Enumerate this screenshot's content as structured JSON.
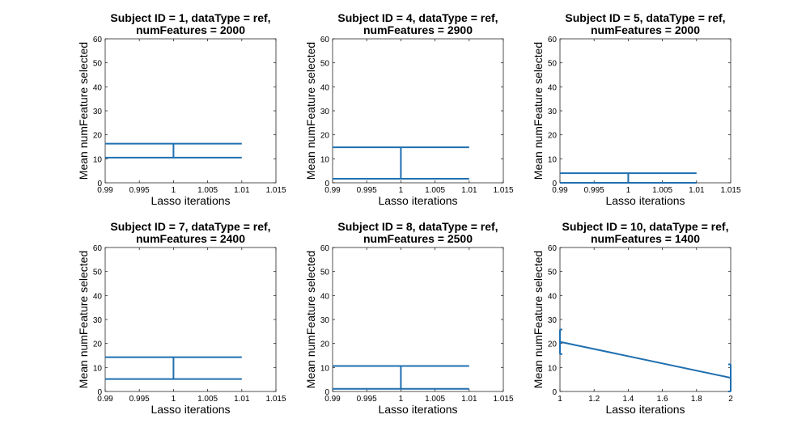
{
  "chart_data": [
    {
      "type": "line",
      "title": [
        "Subject ID = 1, dataType = ref,",
        "numFeatures = 2000"
      ],
      "xlabel": "Lasso iterations",
      "ylabel": "Mean numFeature selected",
      "xlim": [
        0.99,
        1.015
      ],
      "ylim": [
        0,
        60
      ],
      "xticks": [
        "0.99",
        "0.995",
        "1",
        "1.005",
        "1.01",
        "1.015"
      ],
      "yticks": [
        "0",
        "10",
        "20",
        "30",
        "40",
        "50",
        "60"
      ],
      "color": "#1f6fb0",
      "series": [
        {
          "x": [
            1
          ],
          "y": [
            13.5
          ],
          "lower": [
            10.5
          ],
          "upper": [
            16.3
          ]
        }
      ]
    },
    {
      "type": "line",
      "title": [
        "Subject ID = 4, dataType = ref,",
        "numFeatures = 2900"
      ],
      "xlabel": "Lasso iterations",
      "ylabel": "Mean numFeature selected",
      "xlim": [
        0.99,
        1.015
      ],
      "ylim": [
        0,
        60
      ],
      "xticks": [
        "0.99",
        "0.995",
        "1",
        "1.005",
        "1.01",
        "1.015"
      ],
      "yticks": [
        "0",
        "10",
        "20",
        "30",
        "40",
        "50",
        "60"
      ],
      "color": "#1f6fb0",
      "series": [
        {
          "x": [
            1
          ],
          "y": [
            8.3
          ],
          "lower": [
            1.7
          ],
          "upper": [
            14.8
          ]
        }
      ]
    },
    {
      "type": "line",
      "title": [
        "Subject ID = 5, dataType = ref,",
        "numFeatures = 2000"
      ],
      "xlabel": "Lasso iterations",
      "ylabel": "Mean numFeature selected",
      "xlim": [
        0.99,
        1.015
      ],
      "ylim": [
        0,
        60
      ],
      "xticks": [
        "0.99",
        "0.995",
        "1",
        "1.005",
        "1.01",
        "1.015"
      ],
      "yticks": [
        "0",
        "10",
        "20",
        "30",
        "40",
        "50",
        "60"
      ],
      "color": "#1f6fb0",
      "series": [
        {
          "x": [
            1
          ],
          "y": [
            2
          ],
          "lower": [
            0
          ],
          "upper": [
            4
          ]
        }
      ]
    },
    {
      "type": "line",
      "title": [
        "Subject ID = 7, dataType = ref,",
        "numFeatures = 2400"
      ],
      "xlabel": "Lasso iterations",
      "ylabel": "Mean numFeature selected",
      "xlim": [
        0.99,
        1.015
      ],
      "ylim": [
        0,
        60
      ],
      "xticks": [
        "0.99",
        "0.995",
        "1",
        "1.005",
        "1.01",
        "1.015"
      ],
      "yticks": [
        "0",
        "10",
        "20",
        "30",
        "40",
        "50",
        "60"
      ],
      "color": "#1f6fb0",
      "series": [
        {
          "x": [
            1
          ],
          "y": [
            9.7
          ],
          "lower": [
            5.2
          ],
          "upper": [
            14.3
          ]
        }
      ]
    },
    {
      "type": "line",
      "title": [
        "Subject ID = 8, dataType = ref,",
        "numFeatures = 2500"
      ],
      "xlabel": "Lasso iterations",
      "ylabel": "Mean numFeature selected",
      "xlim": [
        0.99,
        1.015
      ],
      "ylim": [
        0,
        60
      ],
      "xticks": [
        "0.99",
        "0.995",
        "1",
        "1.005",
        "1.01",
        "1.015"
      ],
      "yticks": [
        "0",
        "10",
        "20",
        "30",
        "40",
        "50",
        "60"
      ],
      "color": "#1f6fb0",
      "series": [
        {
          "x": [
            1
          ],
          "y": [
            5.8
          ],
          "lower": [
            1.1
          ],
          "upper": [
            10.6
          ]
        }
      ]
    },
    {
      "type": "line",
      "title": [
        "Subject ID = 10, dataType = ref,",
        "numFeatures = 1400"
      ],
      "xlabel": "Lasso iterations",
      "ylabel": "Mean numFeature selected",
      "xlim": [
        1,
        2
      ],
      "ylim": [
        0,
        60
      ],
      "xticks": [
        "1",
        "1.2",
        "1.4",
        "1.6",
        "1.8",
        "2"
      ],
      "yticks": [
        "0",
        "10",
        "20",
        "30",
        "40",
        "50",
        "60"
      ],
      "color": "#1f6fb0",
      "series": [
        {
          "x": [
            1,
            2
          ],
          "y": [
            20.7,
            5.7
          ],
          "lower": [
            15.6,
            0
          ],
          "upper": [
            25.8,
            11.3
          ]
        }
      ]
    }
  ]
}
